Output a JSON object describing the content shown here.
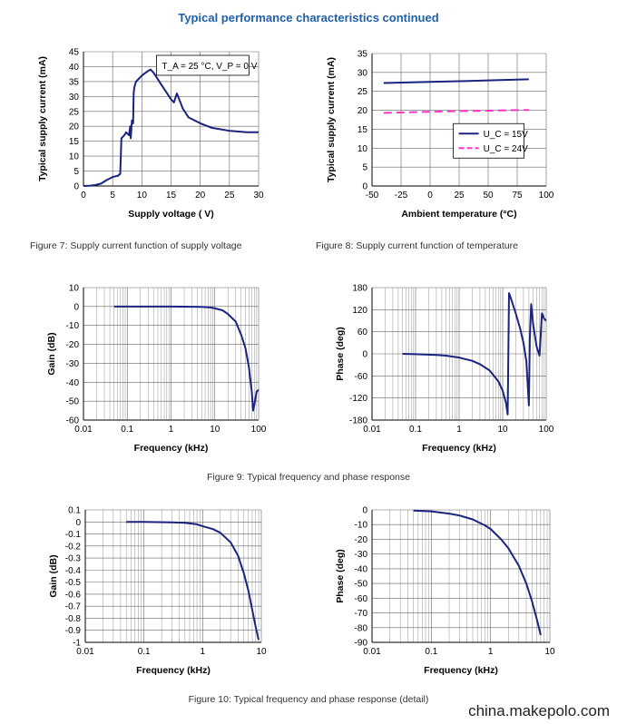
{
  "page": {
    "title": "Typical performance characteristics continued",
    "watermark": "china.makepolo.com",
    "captions": {
      "fig7": "Figure 7: Supply current function of supply voltage",
      "fig8": "Figure 8: Supply current function of temperature",
      "fig9": "Figure 9: Typical frequency and phase response",
      "fig10": "Figure 10: Typical frequency and phase response (detail)"
    }
  },
  "colors": {
    "title": "#1f5ea8",
    "line": "#1a237e",
    "dashed": "#ff33cc",
    "grid": "#666666"
  },
  "chart_data": [
    {
      "id": "fig7",
      "type": "line",
      "xlabel": "Supply voltage ( V)",
      "ylabel": "Typical supply current (mA)",
      "xlim": [
        0,
        30
      ],
      "ylim": [
        0,
        45
      ],
      "xticks": [
        0,
        5,
        10,
        15,
        20,
        25,
        30
      ],
      "yticks": [
        0,
        5,
        10,
        15,
        20,
        25,
        30,
        35,
        40,
        45
      ],
      "annotation": "T_A = 25 °C, V_P = 0 V",
      "series": [
        {
          "x": [
            0,
            1,
            2,
            3,
            4,
            5,
            6,
            6.1,
            6.3,
            6.5,
            7,
            7.3,
            7.8,
            8,
            8.1,
            8.3,
            8.5,
            8.6,
            8.7,
            9,
            10,
            11,
            11.5,
            12,
            13,
            14,
            15,
            15.5,
            16,
            16.5,
            17,
            18,
            20,
            22,
            25,
            28,
            30
          ],
          "y": [
            0,
            0.1,
            0.3,
            0.8,
            2,
            3,
            3.5,
            3.8,
            4,
            16,
            17,
            18,
            17,
            20,
            16,
            22,
            21,
            31,
            33,
            35,
            37,
            38.5,
            39,
            38,
            35,
            32,
            29,
            28,
            31,
            28.5,
            26,
            23,
            21,
            19.5,
            18.5,
            18,
            18
          ]
        }
      ]
    },
    {
      "id": "fig8",
      "type": "line",
      "xlabel": "Ambient temperature (°C)",
      "ylabel": "Typical supply current (mA)",
      "xlim": [
        -50,
        100
      ],
      "ylim": [
        0,
        35
      ],
      "xticks": [
        -50,
        -25,
        0,
        25,
        50,
        75,
        100
      ],
      "yticks": [
        0,
        5,
        10,
        15,
        20,
        25,
        30,
        35
      ],
      "legend_position": "bottom-right",
      "series": [
        {
          "name": "U_C = 15V",
          "x": [
            -40,
            0,
            25,
            50,
            85
          ],
          "y": [
            27.2,
            27.5,
            27.7,
            27.9,
            28.2
          ],
          "style": "solid"
        },
        {
          "name": "U_C = 24V",
          "x": [
            -40,
            0,
            25,
            50,
            85
          ],
          "y": [
            19.3,
            19.6,
            19.8,
            19.9,
            20.1
          ],
          "style": "dashed"
        }
      ]
    },
    {
      "id": "fig9a",
      "type": "line",
      "xlabel": "Frequency (kHz)",
      "ylabel": "Gain (dB)",
      "xscale": "log",
      "xlim": [
        0.01,
        100
      ],
      "ylim": [
        -60,
        10
      ],
      "xticks": [
        0.01,
        0.1,
        1,
        10,
        100
      ],
      "xtick_labels": [
        "0.01",
        "0.1",
        "1",
        "10",
        "100"
      ],
      "yticks": [
        10,
        0,
        -10,
        -20,
        -30,
        -40,
        -50,
        -60
      ],
      "series": [
        {
          "x": [
            0.05,
            0.1,
            0.5,
            1,
            3,
            5,
            8,
            10,
            15,
            20,
            30,
            40,
            50,
            60,
            70,
            75,
            80,
            90,
            100
          ],
          "y": [
            0,
            0,
            0,
            0,
            -0.1,
            -0.2,
            -0.5,
            -1,
            -2,
            -4,
            -8,
            -15,
            -22,
            -32,
            -45,
            -55,
            -52,
            -45,
            -44
          ]
        }
      ]
    },
    {
      "id": "fig9b",
      "type": "line",
      "xlabel": "Frequency (kHz)",
      "ylabel": "Phase (deg)",
      "xscale": "log",
      "xlim": [
        0.01,
        100
      ],
      "ylim": [
        -180,
        180
      ],
      "xticks": [
        0.01,
        0.1,
        1,
        10,
        100
      ],
      "xtick_labels": [
        "0.01",
        "0.1",
        "1",
        "10",
        "100"
      ],
      "yticks": [
        180,
        120,
        60,
        0,
        -60,
        -120,
        -180
      ],
      "series": [
        {
          "x": [
            0.05,
            0.1,
            0.3,
            0.5,
            1,
            2,
            3,
            5,
            8,
            10,
            12,
            13,
            14,
            15,
            20,
            25,
            30,
            35,
            40,
            42,
            45,
            50,
            60,
            70,
            80,
            90,
            100
          ],
          "y": [
            0,
            -1,
            -3,
            -5,
            -10,
            -19,
            -28,
            -45,
            -75,
            -100,
            -135,
            -165,
            165,
            155,
            110,
            70,
            30,
            -20,
            -140,
            40,
            135,
            80,
            20,
            -5,
            110,
            95,
            90
          ]
        }
      ]
    },
    {
      "id": "fig10a",
      "type": "line",
      "xlabel": "Frequency (kHz)",
      "ylabel": "Gain (dB)",
      "xscale": "log",
      "xlim": [
        0.01,
        10
      ],
      "ylim": [
        -1,
        0.1
      ],
      "xticks": [
        0.01,
        0.1,
        1,
        10
      ],
      "xtick_labels": [
        "0.01",
        "0.1",
        "1",
        "10"
      ],
      "yticks": [
        0.1,
        0,
        -0.1,
        -0.2,
        -0.3,
        -0.4,
        -0.5,
        -0.6,
        -0.7,
        -0.8,
        -0.9,
        -1
      ],
      "series": [
        {
          "x": [
            0.05,
            0.1,
            0.3,
            0.5,
            0.8,
            1,
            1.5,
            2,
            3,
            4,
            5,
            6,
            7,
            8,
            9
          ],
          "y": [
            0,
            0,
            -0.003,
            -0.008,
            -0.02,
            -0.035,
            -0.06,
            -0.09,
            -0.17,
            -0.28,
            -0.42,
            -0.57,
            -0.73,
            -0.87,
            -0.98
          ]
        }
      ]
    },
    {
      "id": "fig10b",
      "type": "line",
      "xlabel": "Frequency (kHz)",
      "ylabel": "Phase (deg)",
      "xscale": "log",
      "xlim": [
        0.01,
        10
      ],
      "ylim": [
        -90,
        0
      ],
      "xticks": [
        0.01,
        0.1,
        1,
        10
      ],
      "xtick_labels": [
        "0.01",
        "0.1",
        "1",
        "10"
      ],
      "yticks": [
        0,
        -10,
        -20,
        -30,
        -40,
        -50,
        -60,
        -70,
        -80,
        -90
      ],
      "series": [
        {
          "x": [
            0.05,
            0.1,
            0.2,
            0.3,
            0.5,
            0.8,
            1,
            1.5,
            2,
            3,
            4,
            5,
            6,
            7
          ],
          "y": [
            -0.5,
            -1,
            -2.5,
            -3.8,
            -6.5,
            -10.5,
            -13,
            -20,
            -26,
            -38,
            -50,
            -62,
            -74,
            -85
          ]
        }
      ]
    }
  ]
}
